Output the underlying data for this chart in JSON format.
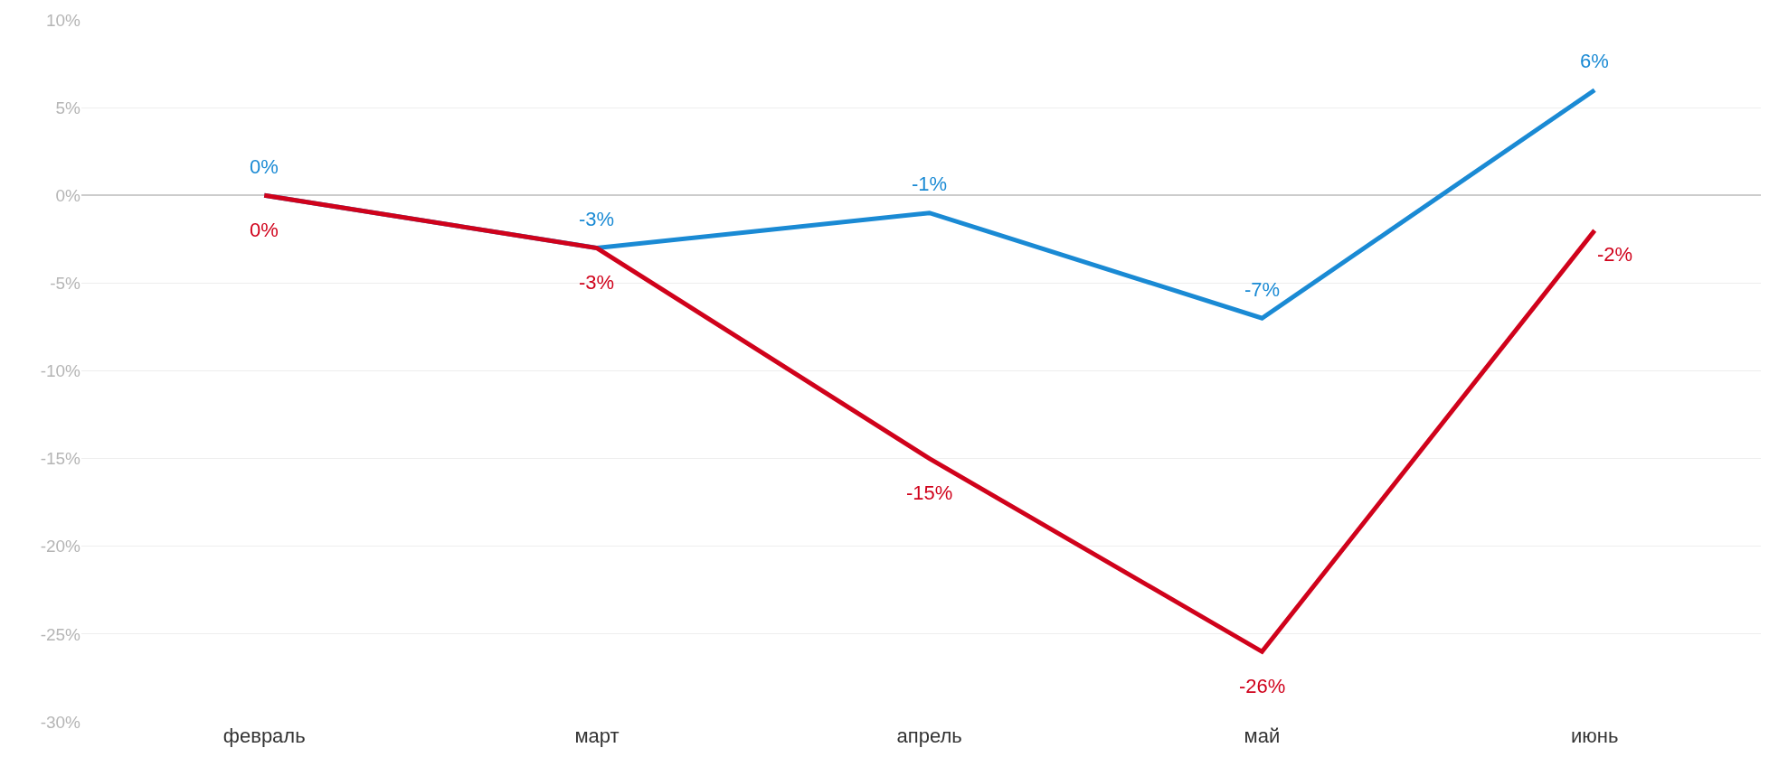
{
  "chart_data": {
    "type": "line",
    "categories": [
      "февраль",
      "март",
      "апрель",
      "май",
      "июнь"
    ],
    "series": [
      {
        "color": "#1a8ad4",
        "values": [
          0,
          -3,
          -1,
          -7,
          6
        ],
        "value_labels": [
          "0%",
          "-3%",
          "-1%",
          "-7%",
          "6%"
        ]
      },
      {
        "color": "#d0021b",
        "values": [
          0,
          -3,
          -15,
          -26,
          -2
        ],
        "value_labels": [
          "0%",
          "-3%",
          "-15%",
          "-26%",
          "-2%"
        ]
      }
    ],
    "ylim": [
      -30,
      10
    ],
    "yticks": [
      {
        "value": -30,
        "label": "-30%"
      },
      {
        "value": -25,
        "label": "-25%"
      },
      {
        "value": -20,
        "label": "-20%"
      },
      {
        "value": -15,
        "label": "-15%"
      },
      {
        "value": -10,
        "label": "-10%"
      },
      {
        "value": -5,
        "label": "-5%"
      },
      {
        "value": 0,
        "label": "0%"
      },
      {
        "value": 5,
        "label": "5%"
      },
      {
        "value": 10,
        "label": "10%"
      }
    ],
    "grid": "y",
    "marker": "none",
    "line_style": "solid"
  }
}
